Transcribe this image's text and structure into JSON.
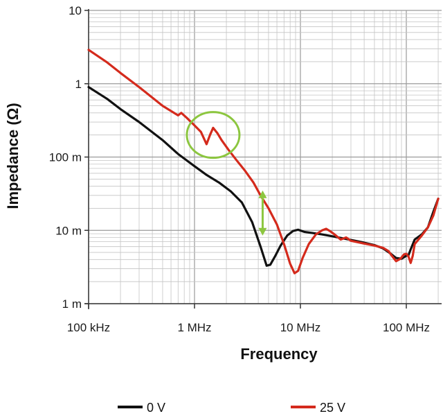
{
  "chart_data": {
    "type": "line",
    "xlabel": "Frequency",
    "ylabel": "Impedance (Ω)",
    "xscale": "log",
    "yscale": "log",
    "xlim": [
      100000,
      200000000
    ],
    "ylim": [
      0.001,
      10
    ],
    "grid": true,
    "legend_position": "bottom",
    "x_tick_labels": [
      "100 kHz",
      "1 MHz",
      "10 MHz",
      "100 MHz"
    ],
    "y_tick_labels": [
      "1 m",
      "10 m",
      "100 m",
      "1",
      "10"
    ],
    "series": [
      {
        "name": "0 V",
        "color": "#111111",
        "x": [
          100000,
          150000,
          200000,
          300000,
          500000,
          700000,
          1000000,
          1300000,
          1700000,
          2200000,
          2800000,
          3500000,
          4200000,
          4800000,
          5200000,
          5800000,
          6500000,
          7500000,
          8500000,
          9500000,
          11000000,
          13000000,
          16000000,
          20000000,
          25000000,
          30000000,
          40000000,
          50000000,
          60000000,
          70000000,
          80000000,
          90000000,
          100000000,
          105000000,
          110000000,
          120000000,
          140000000,
          160000000,
          180000000,
          200000000
        ],
        "y": [
          0.9,
          0.62,
          0.45,
          0.3,
          0.17,
          0.11,
          0.075,
          0.057,
          0.045,
          0.034,
          0.024,
          0.013,
          0.006,
          0.0033,
          0.0034,
          0.0045,
          0.0062,
          0.0085,
          0.0098,
          0.0102,
          0.0095,
          0.0092,
          0.0088,
          0.0083,
          0.0078,
          0.0074,
          0.0068,
          0.0063,
          0.0057,
          0.0049,
          0.0042,
          0.0041,
          0.0045,
          0.0046,
          0.0055,
          0.0075,
          0.0088,
          0.011,
          0.018,
          0.027
        ]
      },
      {
        "name": "25 V",
        "color": "#d42a1c",
        "x": [
          100000,
          150000,
          200000,
          300000,
          500000,
          700000,
          750000,
          850000,
          1000000,
          1150000,
          1300000,
          1400000,
          1500000,
          1650000,
          1800000,
          2100000,
          2500000,
          3000000,
          3600000,
          4200000,
          5000000,
          6000000,
          7000000,
          8000000,
          8800000,
          9500000,
          10500000,
          12000000,
          14000000,
          16000000,
          17500000,
          19000000,
          21000000,
          24000000,
          27000000,
          30000000,
          40000000,
          50000000,
          60000000,
          68000000,
          73000000,
          80000000,
          88000000,
          95000000,
          100000000,
          105000000,
          110000000,
          115000000,
          120000000,
          140000000,
          160000000,
          180000000,
          200000000
        ],
        "y": [
          2.9,
          1.95,
          1.4,
          0.9,
          0.5,
          0.37,
          0.4,
          0.34,
          0.27,
          0.22,
          0.15,
          0.2,
          0.25,
          0.21,
          0.17,
          0.125,
          0.09,
          0.065,
          0.045,
          0.03,
          0.02,
          0.012,
          0.0065,
          0.0035,
          0.0026,
          0.0028,
          0.0042,
          0.0065,
          0.0088,
          0.01,
          0.0105,
          0.0098,
          0.0088,
          0.0075,
          0.008,
          0.0072,
          0.0066,
          0.0062,
          0.0058,
          0.0052,
          0.0045,
          0.0038,
          0.0041,
          0.0047,
          0.0048,
          0.0044,
          0.0036,
          0.0045,
          0.0065,
          0.0085,
          0.011,
          0.016,
          0.027
        ]
      }
    ],
    "annotations": [
      {
        "type": "ellipse",
        "color": "#8cc63f",
        "center_x": 1500000,
        "center_y": 0.2
      },
      {
        "type": "double-arrow",
        "color": "#8cc63f",
        "x": 4400000,
        "y_from": 0.035,
        "y_to": 0.0085
      }
    ]
  }
}
